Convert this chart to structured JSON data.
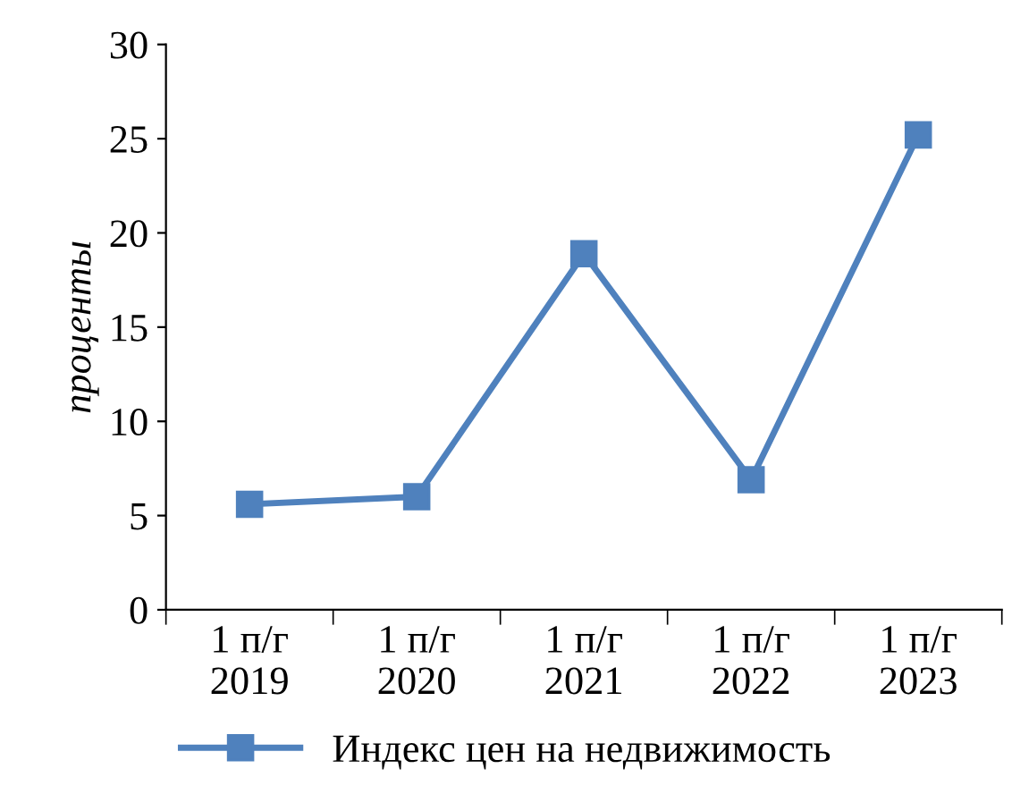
{
  "chart_data": {
    "type": "line",
    "ylabel": "проценты",
    "categories": [
      "1 п/г\n2019",
      "1 п/г\n2020",
      "1 п/г\n2021",
      "1 п/г\n2022",
      "1 п/г\n2023"
    ],
    "series": [
      {
        "name": "Индекс цен на недвижимость",
        "color": "#4f81bd",
        "values": [
          5.6,
          6.0,
          18.9,
          6.9,
          25.2
        ]
      }
    ],
    "ylim": [
      0,
      30
    ],
    "yticks": [
      0,
      5,
      10,
      15,
      20,
      25,
      30
    ],
    "marker": "square",
    "line_style": "solid",
    "legend": "bottom",
    "grid": false
  }
}
